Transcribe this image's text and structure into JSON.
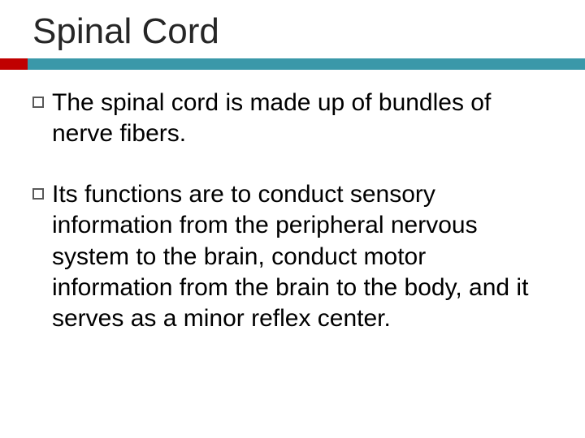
{
  "slide": {
    "title": "Spinal Cord",
    "title_fontsize": 44,
    "title_color": "#262626",
    "accent_bar_color": "#3a98a9",
    "accent_stub_color": "#c00000",
    "background_color": "#ffffff",
    "body_fontsize": 30,
    "body_color": "#000000",
    "bullet_marker_border": "#595959",
    "bullets": [
      {
        "text": "The spinal cord is made up of bundles of nerve fibers."
      },
      {
        "text": "Its functions are to conduct sensory information from the peripheral nervous system to the brain, conduct motor information from the brain to the body, and it serves as a minor reflex center."
      }
    ]
  }
}
